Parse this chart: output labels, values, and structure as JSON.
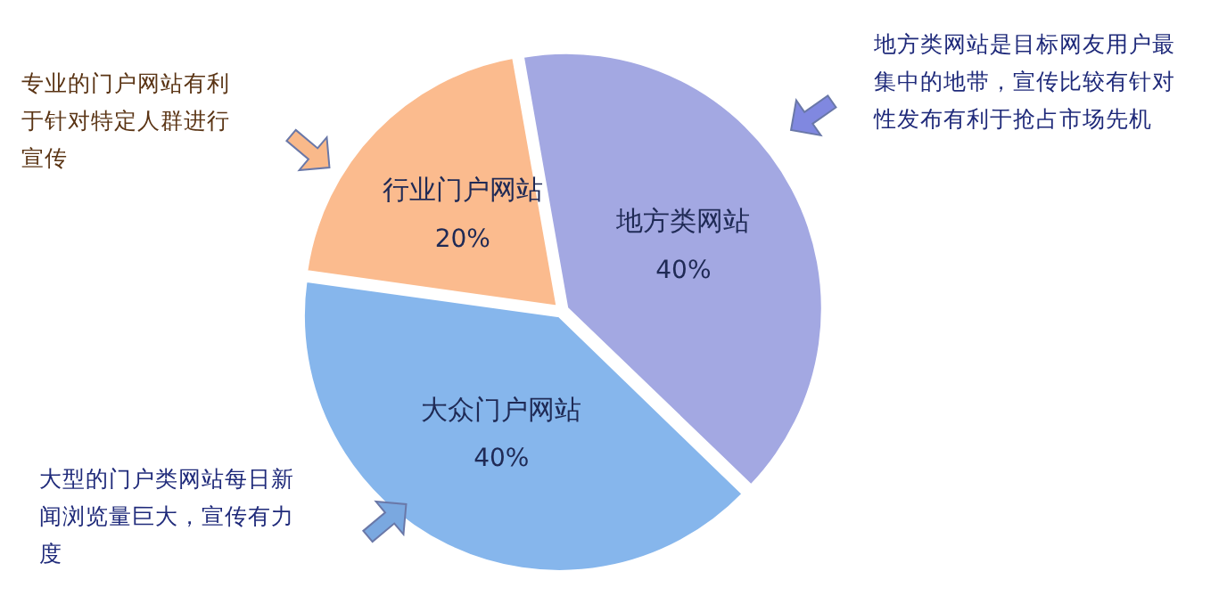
{
  "chart_data": {
    "type": "pie",
    "categories": [
      "地方类网站",
      "大众门户网站",
      "行业门户网站"
    ],
    "values": [
      40,
      40,
      20
    ],
    "value_labels": [
      "40%",
      "40%",
      "20%"
    ],
    "colors": [
      "#a3a8e2",
      "#86b6ec",
      "#fbbb8e"
    ],
    "legend": false,
    "annotations": [
      "地方类网站是目标网友用户最集中的地带，宣传比较有针对性发布有利于抢占市场先机",
      "大型的门户类网站每日新闻浏览量巨大，宣传有力度",
      "专业的门户网站有利于针对特定人群进行宣传"
    ]
  }
}
